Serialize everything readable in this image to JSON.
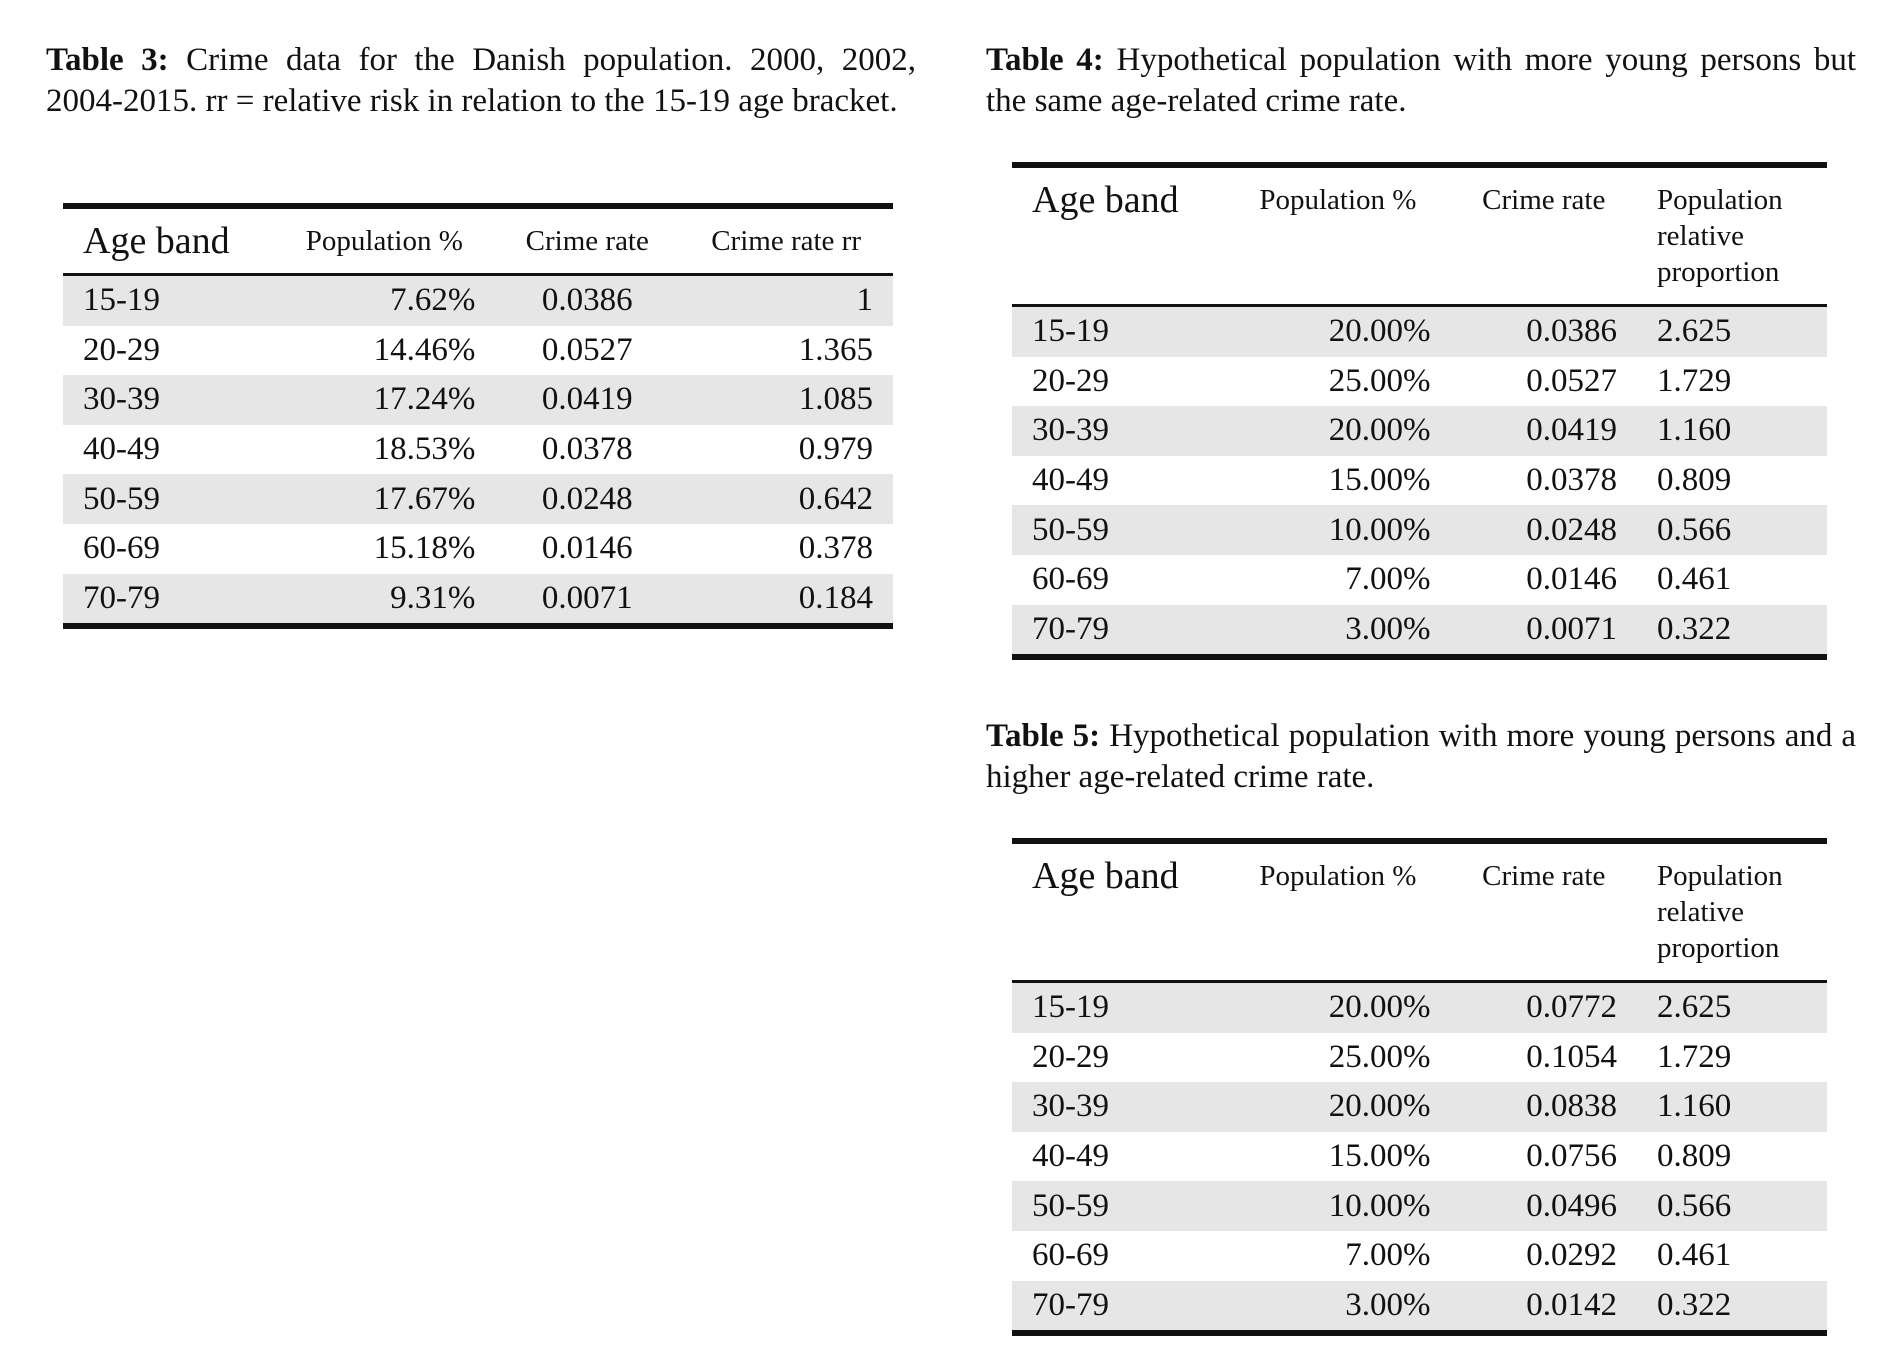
{
  "tables": [
    {
      "label": "Table 3:",
      "caption": "Crime data for the Danish population. 2000, 2002, 2004-2015. rr = relative risk in relation to the 15-19 age bracket.",
      "headers": [
        "Age band",
        "Population %",
        "Crime rate",
        "Crime rate rr"
      ],
      "rows": [
        [
          "15-19",
          "7.62%",
          "0.0386",
          "1"
        ],
        [
          "20-29",
          "14.46%",
          "0.0527",
          "1.365"
        ],
        [
          "30-39",
          "17.24%",
          "0.0419",
          "1.085"
        ],
        [
          "40-49",
          "18.53%",
          "0.0378",
          "0.979"
        ],
        [
          "50-59",
          "17.67%",
          "0.0248",
          "0.642"
        ],
        [
          "60-69",
          "15.18%",
          "0.0146",
          "0.378"
        ],
        [
          "70-79",
          "9.31%",
          "0.0071",
          "0.184"
        ]
      ]
    },
    {
      "label": "Table 4:",
      "caption": "Hypothetical population with more young persons but the same age-related crime rate.",
      "headers": [
        "Age band",
        "Population %",
        "Crime rate",
        "Population relative proportion"
      ],
      "rows": [
        [
          "15-19",
          "20.00%",
          "0.0386",
          "2.625"
        ],
        [
          "20-29",
          "25.00%",
          "0.0527",
          "1.729"
        ],
        [
          "30-39",
          "20.00%",
          "0.0419",
          "1.160"
        ],
        [
          "40-49",
          "15.00%",
          "0.0378",
          "0.809"
        ],
        [
          "50-59",
          "10.00%",
          "0.0248",
          "0.566"
        ],
        [
          "60-69",
          "7.00%",
          "0.0146",
          "0.461"
        ],
        [
          "70-79",
          "3.00%",
          "0.0071",
          "0.322"
        ]
      ]
    },
    {
      "label": "Table 5:",
      "caption": "Hypothetical population with more young persons and a higher age-related crime rate.",
      "headers": [
        "Age band",
        "Population %",
        "Crime rate",
        "Population relative proportion"
      ],
      "rows": [
        [
          "15-19",
          "20.00%",
          "0.0772",
          "2.625"
        ],
        [
          "20-29",
          "25.00%",
          "0.1054",
          "1.729"
        ],
        [
          "30-39",
          "20.00%",
          "0.0838",
          "1.160"
        ],
        [
          "40-49",
          "15.00%",
          "0.0756",
          "0.809"
        ],
        [
          "50-59",
          "10.00%",
          "0.0496",
          "0.566"
        ],
        [
          "60-69",
          "7.00%",
          "0.0292",
          "0.461"
        ],
        [
          "70-79",
          "3.00%",
          "0.0142",
          "0.322"
        ]
      ]
    }
  ]
}
